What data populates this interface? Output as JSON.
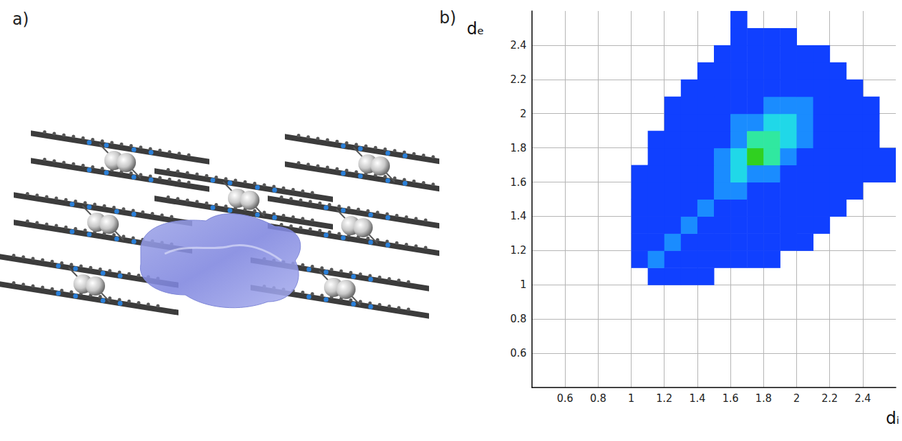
{
  "chart_data": {
    "type": "heatmap",
    "panel_labels": [
      "a)",
      "b)"
    ],
    "xlabel": "dᵢ",
    "ylabel": "dₑ",
    "xlim": [
      0.4,
      2.6
    ],
    "ylim": [
      0.4,
      2.6
    ],
    "xticks": [
      0.6,
      0.8,
      1.0,
      1.2,
      1.4,
      1.6,
      1.8,
      2.0,
      2.2,
      2.4
    ],
    "yticks": [
      0.6,
      0.8,
      1.0,
      1.2,
      1.4,
      1.6,
      1.8,
      2.0,
      2.2,
      2.4
    ],
    "grid": true,
    "cell_size": 0.1,
    "zlim": [
      1,
      5
    ],
    "cells": [
      [
        1.15,
        1.05,
        1
      ],
      [
        1.25,
        1.05,
        1
      ],
      [
        1.35,
        1.05,
        1
      ],
      [
        1.45,
        1.05,
        1
      ],
      [
        1.05,
        1.15,
        1
      ],
      [
        1.15,
        1.15,
        2
      ],
      [
        1.25,
        1.15,
        1
      ],
      [
        1.35,
        1.15,
        1
      ],
      [
        1.45,
        1.15,
        1
      ],
      [
        1.55,
        1.15,
        1
      ],
      [
        1.65,
        1.15,
        1
      ],
      [
        1.75,
        1.15,
        1
      ],
      [
        1.85,
        1.15,
        1
      ],
      [
        1.05,
        1.25,
        1
      ],
      [
        1.15,
        1.25,
        1
      ],
      [
        1.25,
        1.25,
        2
      ],
      [
        1.35,
        1.25,
        1
      ],
      [
        1.45,
        1.25,
        1
      ],
      [
        1.55,
        1.25,
        1
      ],
      [
        1.65,
        1.25,
        1
      ],
      [
        1.75,
        1.25,
        1
      ],
      [
        1.85,
        1.25,
        1
      ],
      [
        1.95,
        1.25,
        1
      ],
      [
        2.05,
        1.25,
        1
      ],
      [
        1.05,
        1.35,
        1
      ],
      [
        1.15,
        1.35,
        1
      ],
      [
        1.25,
        1.35,
        1
      ],
      [
        1.35,
        1.35,
        2
      ],
      [
        1.45,
        1.35,
        1
      ],
      [
        1.55,
        1.35,
        1
      ],
      [
        1.65,
        1.35,
        1
      ],
      [
        1.75,
        1.35,
        1
      ],
      [
        1.85,
        1.35,
        1
      ],
      [
        1.95,
        1.35,
        1
      ],
      [
        2.05,
        1.35,
        1
      ],
      [
        2.15,
        1.35,
        1
      ],
      [
        1.05,
        1.45,
        1
      ],
      [
        1.15,
        1.45,
        1
      ],
      [
        1.25,
        1.45,
        1
      ],
      [
        1.35,
        1.45,
        1
      ],
      [
        1.45,
        1.45,
        2
      ],
      [
        1.55,
        1.45,
        1
      ],
      [
        1.65,
        1.45,
        1
      ],
      [
        1.75,
        1.45,
        1
      ],
      [
        1.85,
        1.45,
        1
      ],
      [
        1.95,
        1.45,
        1
      ],
      [
        2.05,
        1.45,
        1
      ],
      [
        2.15,
        1.45,
        1
      ],
      [
        2.25,
        1.45,
        1
      ],
      [
        1.05,
        1.55,
        1
      ],
      [
        1.15,
        1.55,
        1
      ],
      [
        1.25,
        1.55,
        1
      ],
      [
        1.35,
        1.55,
        1
      ],
      [
        1.45,
        1.55,
        1
      ],
      [
        1.55,
        1.55,
        2
      ],
      [
        1.65,
        1.55,
        2
      ],
      [
        1.75,
        1.55,
        1
      ],
      [
        1.85,
        1.55,
        1
      ],
      [
        1.95,
        1.55,
        1
      ],
      [
        2.05,
        1.55,
        1
      ],
      [
        2.15,
        1.55,
        1
      ],
      [
        2.25,
        1.55,
        1
      ],
      [
        2.35,
        1.55,
        1
      ],
      [
        1.05,
        1.65,
        1
      ],
      [
        1.15,
        1.65,
        1
      ],
      [
        1.25,
        1.65,
        1
      ],
      [
        1.35,
        1.65,
        1
      ],
      [
        1.45,
        1.65,
        1
      ],
      [
        1.55,
        1.65,
        2
      ],
      [
        1.65,
        1.65,
        3
      ],
      [
        1.75,
        1.65,
        2
      ],
      [
        1.85,
        1.65,
        2
      ],
      [
        1.95,
        1.65,
        1
      ],
      [
        2.05,
        1.65,
        1
      ],
      [
        2.15,
        1.65,
        1
      ],
      [
        2.25,
        1.65,
        1
      ],
      [
        2.35,
        1.65,
        1
      ],
      [
        2.45,
        1.65,
        1
      ],
      [
        2.55,
        1.65,
        1
      ],
      [
        1.15,
        1.75,
        1
      ],
      [
        1.25,
        1.75,
        1
      ],
      [
        1.35,
        1.75,
        1
      ],
      [
        1.45,
        1.75,
        1
      ],
      [
        1.55,
        1.75,
        2
      ],
      [
        1.65,
        1.75,
        3
      ],
      [
        1.75,
        1.75,
        5
      ],
      [
        1.85,
        1.75,
        4
      ],
      [
        1.95,
        1.75,
        2
      ],
      [
        2.05,
        1.75,
        1
      ],
      [
        2.15,
        1.75,
        1
      ],
      [
        2.25,
        1.75,
        1
      ],
      [
        2.35,
        1.75,
        1
      ],
      [
        2.45,
        1.75,
        1
      ],
      [
        2.55,
        1.75,
        1
      ],
      [
        1.15,
        1.85,
        1
      ],
      [
        1.25,
        1.85,
        1
      ],
      [
        1.35,
        1.85,
        1
      ],
      [
        1.45,
        1.85,
        1
      ],
      [
        1.55,
        1.85,
        1
      ],
      [
        1.65,
        1.85,
        2
      ],
      [
        1.75,
        1.85,
        4
      ],
      [
        1.85,
        1.85,
        4
      ],
      [
        1.95,
        1.85,
        3
      ],
      [
        2.05,
        1.85,
        2
      ],
      [
        2.15,
        1.85,
        1
      ],
      [
        2.25,
        1.85,
        1
      ],
      [
        2.35,
        1.85,
        1
      ],
      [
        2.45,
        1.85,
        1
      ],
      [
        1.25,
        1.95,
        1
      ],
      [
        1.35,
        1.95,
        1
      ],
      [
        1.45,
        1.95,
        1
      ],
      [
        1.55,
        1.95,
        1
      ],
      [
        1.65,
        1.95,
        2
      ],
      [
        1.75,
        1.95,
        2
      ],
      [
        1.85,
        1.95,
        3
      ],
      [
        1.95,
        1.95,
        3
      ],
      [
        2.05,
        1.95,
        2
      ],
      [
        2.15,
        1.95,
        1
      ],
      [
        2.25,
        1.95,
        1
      ],
      [
        2.35,
        1.95,
        1
      ],
      [
        2.45,
        1.95,
        1
      ],
      [
        1.25,
        2.05,
        1
      ],
      [
        1.35,
        2.05,
        1
      ],
      [
        1.45,
        2.05,
        1
      ],
      [
        1.55,
        2.05,
        1
      ],
      [
        1.65,
        2.05,
        1
      ],
      [
        1.75,
        2.05,
        1
      ],
      [
        1.85,
        2.05,
        2
      ],
      [
        1.95,
        2.05,
        2
      ],
      [
        2.05,
        2.05,
        2
      ],
      [
        2.15,
        2.05,
        1
      ],
      [
        2.25,
        2.05,
        1
      ],
      [
        2.35,
        2.05,
        1
      ],
      [
        2.45,
        2.05,
        1
      ],
      [
        1.35,
        2.15,
        1
      ],
      [
        1.45,
        2.15,
        1
      ],
      [
        1.55,
        2.15,
        1
      ],
      [
        1.65,
        2.15,
        1
      ],
      [
        1.75,
        2.15,
        1
      ],
      [
        1.85,
        2.15,
        1
      ],
      [
        1.95,
        2.15,
        1
      ],
      [
        2.05,
        2.15,
        1
      ],
      [
        2.15,
        2.15,
        1
      ],
      [
        2.25,
        2.15,
        1
      ],
      [
        2.35,
        2.15,
        1
      ],
      [
        1.45,
        2.25,
        1
      ],
      [
        1.55,
        2.25,
        1
      ],
      [
        1.65,
        2.25,
        1
      ],
      [
        1.75,
        2.25,
        1
      ],
      [
        1.85,
        2.25,
        1
      ],
      [
        1.95,
        2.25,
        1
      ],
      [
        2.05,
        2.25,
        1
      ],
      [
        2.15,
        2.25,
        1
      ],
      [
        2.25,
        2.25,
        1
      ],
      [
        1.55,
        2.35,
        1
      ],
      [
        1.65,
        2.35,
        1
      ],
      [
        1.75,
        2.35,
        1
      ],
      [
        1.85,
        2.35,
        1
      ],
      [
        1.95,
        2.35,
        1
      ],
      [
        2.05,
        2.35,
        1
      ],
      [
        2.15,
        2.35,
        1
      ],
      [
        1.65,
        2.45,
        1
      ],
      [
        1.75,
        2.45,
        1
      ],
      [
        1.85,
        2.45,
        1
      ],
      [
        1.95,
        2.45,
        1
      ],
      [
        1.65,
        2.55,
        1
      ]
    ]
  }
}
